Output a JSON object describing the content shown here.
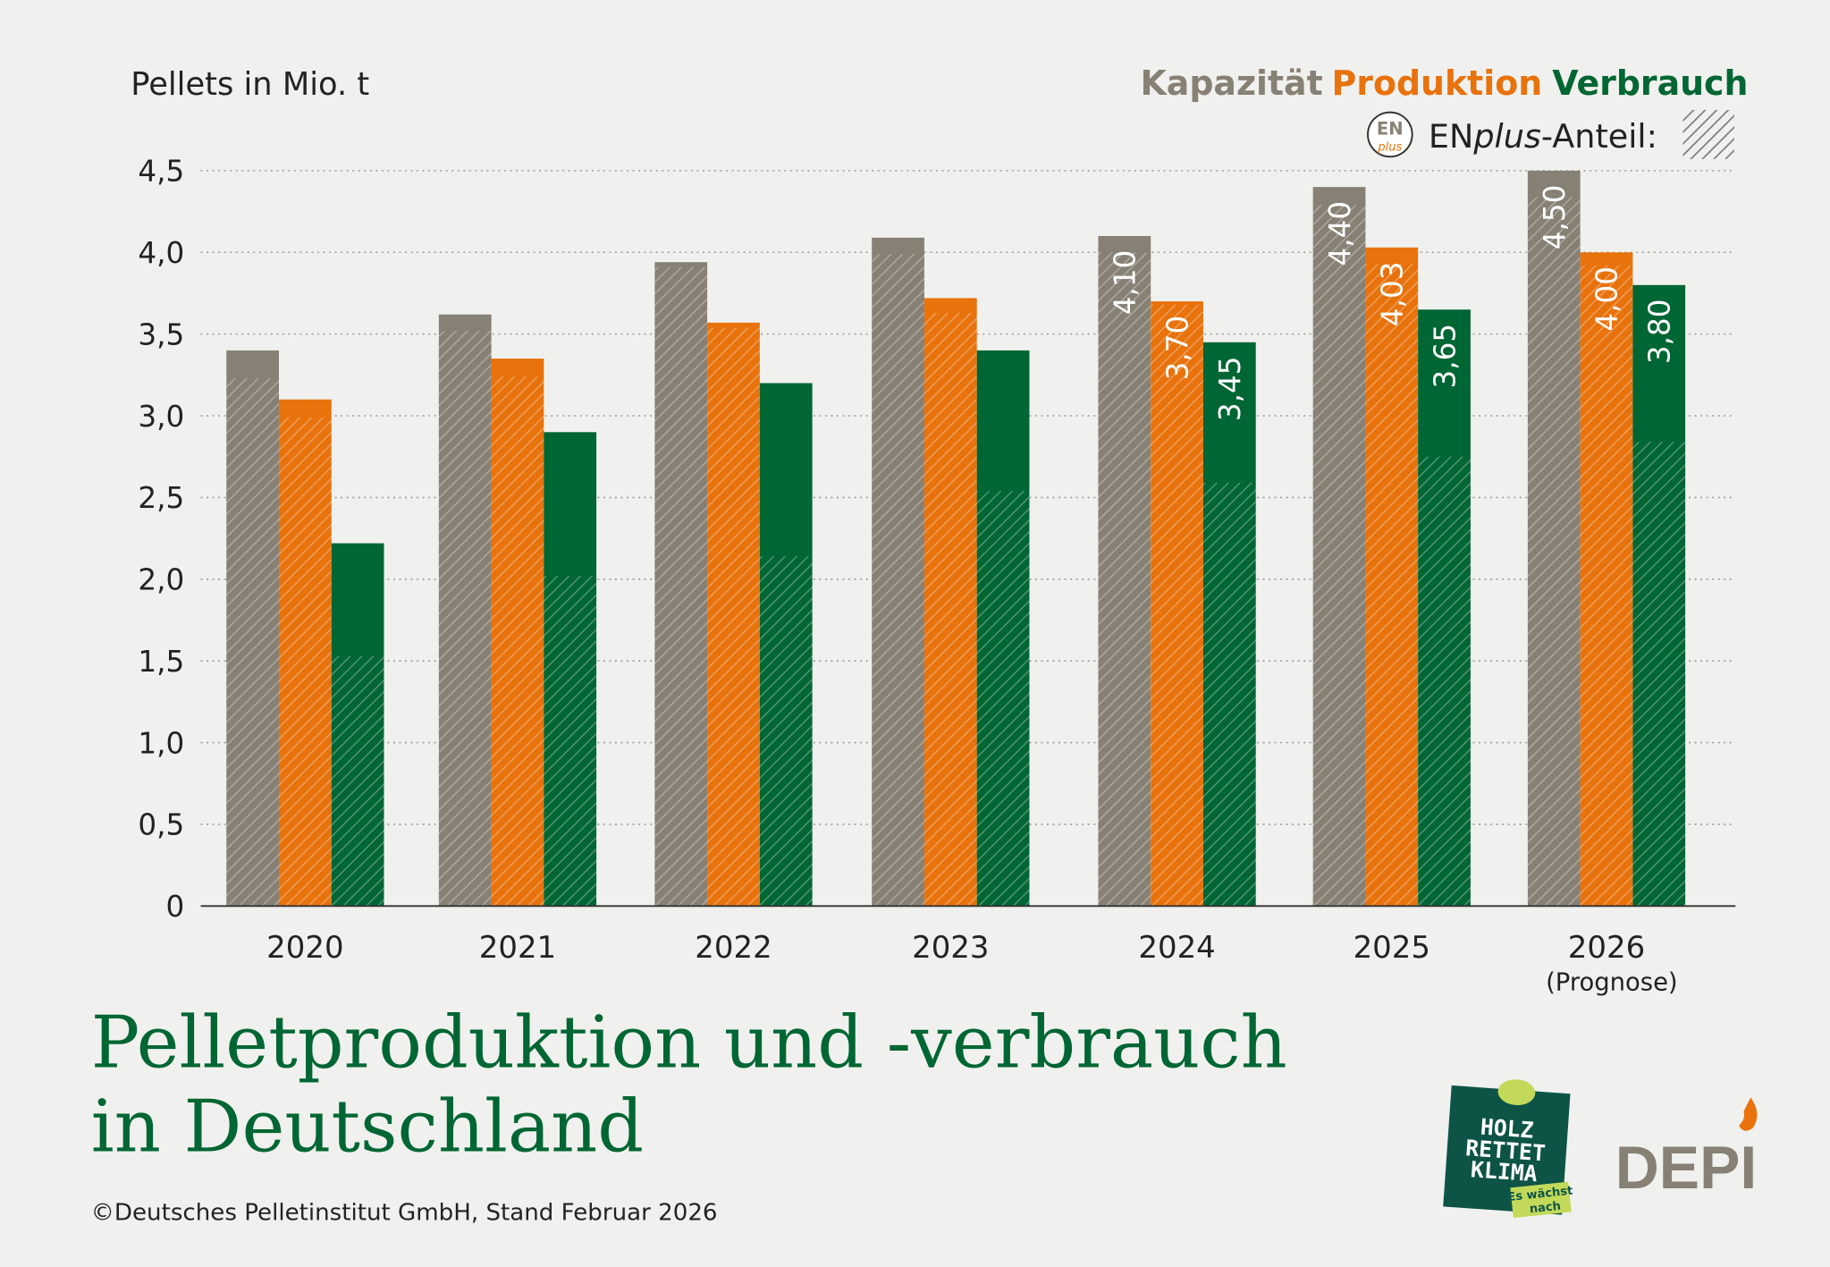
{
  "chart_data": {
    "type": "bar",
    "ylabel": "Pellets in Mio. t",
    "title": "Pelletproduktion und -verbrauch",
    "title_line2": "in Deutschland",
    "categories": [
      "2020",
      "2021",
      "2022",
      "2023",
      "2024",
      "2025",
      "2026"
    ],
    "category_notes": {
      "2026": "(Prognose)"
    },
    "ylim": [
      0,
      4.5
    ],
    "yticks": [
      "0",
      "0,5",
      "1,0",
      "1,5",
      "2,0",
      "2,5",
      "3,0",
      "3,5",
      "4,0",
      "4,5"
    ],
    "grid": true,
    "legend_position": "top-right",
    "legend_hatch_label_prefix": "EN",
    "legend_hatch_label_italic": "plus",
    "legend_hatch_label_suffix": "-Anteil:",
    "enplus_badge": {
      "top": "EN",
      "bottom": "plus"
    },
    "series": [
      {
        "name": "Kapazität",
        "color": "#878074",
        "values": [
          3.4,
          3.62,
          3.94,
          4.09,
          4.1,
          4.4,
          4.5
        ],
        "enplus_share": [
          3.23,
          3.52,
          3.91,
          3.99,
          4.0,
          4.29,
          4.34
        ],
        "labels": [
          "",
          "",
          "",
          "",
          "4,10",
          "4,40",
          "4,50"
        ]
      },
      {
        "name": "Produktion",
        "color": "#e8720c",
        "values": [
          3.1,
          3.35,
          3.57,
          3.72,
          3.7,
          4.03,
          4.0
        ],
        "enplus_share": [
          2.99,
          3.24,
          3.54,
          3.63,
          3.68,
          3.93,
          3.92
        ],
        "labels": [
          "",
          "",
          "",
          "",
          "3,70",
          "4,03",
          "4,00"
        ]
      },
      {
        "name": "Verbrauch",
        "color": "#006633",
        "values": [
          2.22,
          2.9,
          3.2,
          3.4,
          3.45,
          3.65,
          3.8
        ],
        "enplus_share": [
          1.53,
          2.02,
          2.14,
          2.54,
          2.59,
          2.75,
          2.84
        ],
        "labels": [
          "",
          "",
          "",
          "",
          "3,45",
          "3,65",
          "3,80"
        ]
      }
    ]
  },
  "footer": {
    "copyright": "©Deutsches Pelletinstitut GmbH, Stand Februar 2026",
    "logo_holz": [
      "HOLZ",
      "RETTET",
      "KLIMA",
      "Es wächst",
      "nach"
    ],
    "logo_depi": "DEPI"
  }
}
